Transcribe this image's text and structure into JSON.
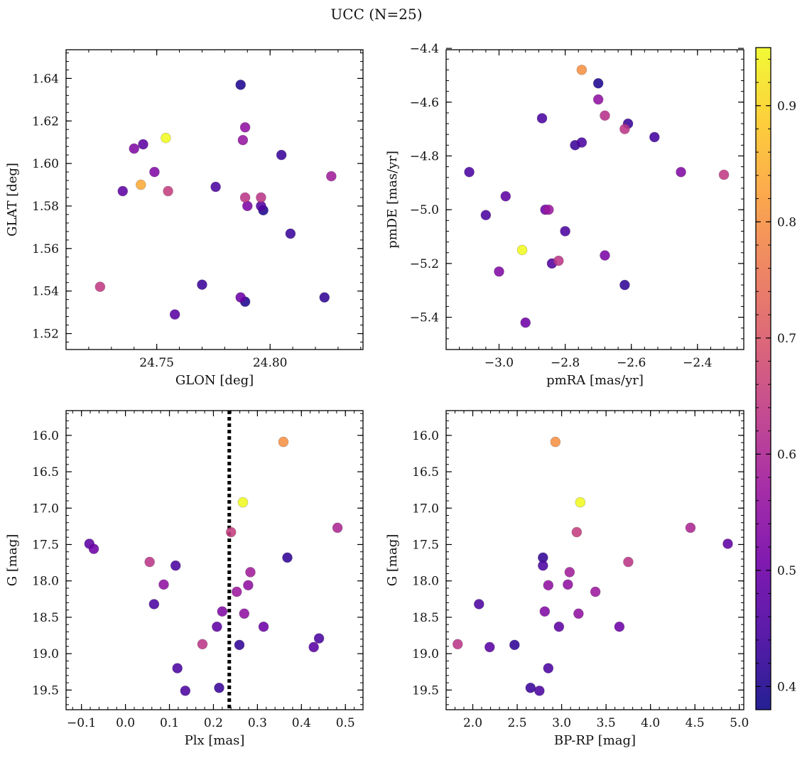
{
  "figure": {
    "title": "UCC (N=25)"
  },
  "colorbar": {
    "range": [
      0.38,
      0.95
    ],
    "ticks": [
      0.4,
      0.5,
      0.6,
      0.7,
      0.8,
      0.9
    ],
    "colormap": [
      "#0d0887",
      "#46039f",
      "#7201a8",
      "#9c179e",
      "#bd3786",
      "#d8576b",
      "#ed7953",
      "#fb9f3a",
      "#fdca26",
      "#f0f921"
    ]
  },
  "chart_data": [
    {
      "type": "scatter",
      "xlabel": "GLON [deg]",
      "ylabel": "GLAT [deg]",
      "xlim": [
        24.71,
        24.841
      ],
      "ylim": [
        1.5125,
        1.6535
      ],
      "xticks": [
        "24.75",
        "24.80"
      ],
      "yticks": [
        "1.52",
        "1.54",
        "1.56",
        "1.58",
        "1.60",
        "1.62",
        "1.64"
      ],
      "points": [
        {
          "x": 24.787,
          "y": 1.637,
          "c": 0.4
        },
        {
          "x": 24.754,
          "y": 1.612,
          "c": 0.95
        },
        {
          "x": 24.789,
          "y": 1.617,
          "c": 0.55
        },
        {
          "x": 24.788,
          "y": 1.611,
          "c": 0.56
        },
        {
          "x": 24.74,
          "y": 1.607,
          "c": 0.53
        },
        {
          "x": 24.744,
          "y": 1.609,
          "c": 0.48
        },
        {
          "x": 24.805,
          "y": 1.604,
          "c": 0.43
        },
        {
          "x": 24.749,
          "y": 1.596,
          "c": 0.53
        },
        {
          "x": 24.827,
          "y": 1.594,
          "c": 0.58
        },
        {
          "x": 24.743,
          "y": 1.59,
          "c": 0.84
        },
        {
          "x": 24.776,
          "y": 1.589,
          "c": 0.45
        },
        {
          "x": 24.735,
          "y": 1.587,
          "c": 0.48
        },
        {
          "x": 24.755,
          "y": 1.587,
          "c": 0.65
        },
        {
          "x": 24.789,
          "y": 1.584,
          "c": 0.63
        },
        {
          "x": 24.796,
          "y": 1.584,
          "c": 0.63
        },
        {
          "x": 24.796,
          "y": 1.58,
          "c": 0.46
        },
        {
          "x": 24.79,
          "y": 1.58,
          "c": 0.52
        },
        {
          "x": 24.797,
          "y": 1.578,
          "c": 0.4
        },
        {
          "x": 24.809,
          "y": 1.567,
          "c": 0.43
        },
        {
          "x": 24.77,
          "y": 1.543,
          "c": 0.43
        },
        {
          "x": 24.725,
          "y": 1.542,
          "c": 0.64
        },
        {
          "x": 24.787,
          "y": 1.537,
          "c": 0.5
        },
        {
          "x": 24.824,
          "y": 1.537,
          "c": 0.42
        },
        {
          "x": 24.789,
          "y": 1.535,
          "c": 0.4
        },
        {
          "x": 24.758,
          "y": 1.529,
          "c": 0.47
        }
      ]
    },
    {
      "type": "scatter",
      "xlabel": "pmRA [mas/yr]",
      "ylabel": "pmDE [mas/yr]",
      "xlim": [
        -3.16,
        -2.26
      ],
      "ylim": [
        -5.52,
        -4.405
      ],
      "xticks": [
        "−3.0",
        "−2.8",
        "−2.6",
        "−2.4"
      ],
      "yticks": [
        "−5.4",
        "−5.2",
        "−5.0",
        "−4.8",
        "−4.6",
        "−4.4"
      ],
      "points": [
        {
          "x": -2.75,
          "y": -4.48,
          "c": 0.8
        },
        {
          "x": -2.7,
          "y": -4.53,
          "c": 0.4
        },
        {
          "x": -2.7,
          "y": -4.59,
          "c": 0.55
        },
        {
          "x": -2.68,
          "y": -4.65,
          "c": 0.62
        },
        {
          "x": -2.87,
          "y": -4.66,
          "c": 0.45
        },
        {
          "x": -2.61,
          "y": -4.68,
          "c": 0.43
        },
        {
          "x": -2.62,
          "y": -4.7,
          "c": 0.63
        },
        {
          "x": -2.53,
          "y": -4.73,
          "c": 0.44
        },
        {
          "x": -2.75,
          "y": -4.75,
          "c": 0.45
        },
        {
          "x": -2.77,
          "y": -4.76,
          "c": 0.43
        },
        {
          "x": -3.09,
          "y": -4.86,
          "c": 0.45
        },
        {
          "x": -2.45,
          "y": -4.86,
          "c": 0.53
        },
        {
          "x": -2.32,
          "y": -4.87,
          "c": 0.64
        },
        {
          "x": -2.98,
          "y": -4.95,
          "c": 0.48
        },
        {
          "x": -2.85,
          "y": -5.0,
          "c": 0.57
        },
        {
          "x": -2.86,
          "y": -5.0,
          "c": 0.5
        },
        {
          "x": -3.04,
          "y": -5.02,
          "c": 0.45
        },
        {
          "x": -2.8,
          "y": -5.08,
          "c": 0.45
        },
        {
          "x": -2.93,
          "y": -5.15,
          "c": 0.95
        },
        {
          "x": -2.68,
          "y": -5.17,
          "c": 0.52
        },
        {
          "x": -2.82,
          "y": -5.19,
          "c": 0.63
        },
        {
          "x": -2.84,
          "y": -5.2,
          "c": 0.46
        },
        {
          "x": -3.0,
          "y": -5.23,
          "c": 0.53
        },
        {
          "x": -2.62,
          "y": -5.28,
          "c": 0.42
        },
        {
          "x": -2.92,
          "y": -5.42,
          "c": 0.5
        }
      ]
    },
    {
      "type": "scatter",
      "xlabel": "Plx [mas]",
      "ylabel": "G [mag]",
      "xlim": [
        -0.135,
        0.54
      ],
      "ylim": [
        19.77,
        15.66
      ],
      "xticks": [
        "−0.1",
        "0.0",
        "0.1",
        "0.2",
        "0.3",
        "0.4",
        "0.5"
      ],
      "yticks": [
        "16.0",
        "16.5",
        "17.0",
        "17.5",
        "18.0",
        "18.5",
        "19.0",
        "19.5"
      ],
      "vline": 0.236,
      "points": [
        {
          "x": 0.359,
          "y": 16.09,
          "c": 0.8
        },
        {
          "x": 0.267,
          "y": 16.92,
          "c": 0.95
        },
        {
          "x": 0.482,
          "y": 17.27,
          "c": 0.6
        },
        {
          "x": 0.24,
          "y": 17.33,
          "c": 0.65
        },
        {
          "x": -0.082,
          "y": 17.49,
          "c": 0.48
        },
        {
          "x": -0.072,
          "y": 17.56,
          "c": 0.5
        },
        {
          "x": 0.368,
          "y": 17.68,
          "c": 0.42
        },
        {
          "x": 0.055,
          "y": 17.74,
          "c": 0.63
        },
        {
          "x": 0.114,
          "y": 17.79,
          "c": 0.45
        },
        {
          "x": 0.284,
          "y": 17.88,
          "c": 0.58
        },
        {
          "x": 0.087,
          "y": 18.05,
          "c": 0.55
        },
        {
          "x": 0.279,
          "y": 18.06,
          "c": 0.55
        },
        {
          "x": 0.253,
          "y": 18.15,
          "c": 0.57
        },
        {
          "x": 0.065,
          "y": 18.32,
          "c": 0.45
        },
        {
          "x": 0.22,
          "y": 18.42,
          "c": 0.53
        },
        {
          "x": 0.27,
          "y": 18.45,
          "c": 0.55
        },
        {
          "x": 0.208,
          "y": 18.63,
          "c": 0.48
        },
        {
          "x": 0.314,
          "y": 18.63,
          "c": 0.5
        },
        {
          "x": 0.44,
          "y": 18.79,
          "c": 0.45
        },
        {
          "x": 0.175,
          "y": 18.87,
          "c": 0.63
        },
        {
          "x": 0.259,
          "y": 18.88,
          "c": 0.42
        },
        {
          "x": 0.428,
          "y": 18.91,
          "c": 0.47
        },
        {
          "x": 0.118,
          "y": 19.2,
          "c": 0.45
        },
        {
          "x": 0.213,
          "y": 19.47,
          "c": 0.43
        },
        {
          "x": 0.136,
          "y": 19.51,
          "c": 0.45
        }
      ]
    },
    {
      "type": "scatter",
      "xlabel": "BP-RP [mag]",
      "ylabel": "G [mag]",
      "xlim": [
        1.7,
        5.05
      ],
      "ylim": [
        19.77,
        15.66
      ],
      "xticks": [
        "2.0",
        "2.5",
        "3.0",
        "3.5",
        "4.0",
        "4.5",
        "5.0"
      ],
      "yticks": [
        "16.0",
        "16.5",
        "17.0",
        "17.5",
        "18.0",
        "18.5",
        "19.0",
        "19.5"
      ],
      "points": [
        {
          "x": 2.93,
          "y": 16.09,
          "c": 0.8
        },
        {
          "x": 3.21,
          "y": 16.92,
          "c": 0.95
        },
        {
          "x": 4.45,
          "y": 17.27,
          "c": 0.6
        },
        {
          "x": 3.17,
          "y": 17.33,
          "c": 0.65
        },
        {
          "x": 4.87,
          "y": 17.49,
          "c": 0.48
        },
        {
          "x": 2.79,
          "y": 17.68,
          "c": 0.42
        },
        {
          "x": 3.75,
          "y": 17.74,
          "c": 0.63
        },
        {
          "x": 2.79,
          "y": 17.79,
          "c": 0.45
        },
        {
          "x": 3.09,
          "y": 17.88,
          "c": 0.58
        },
        {
          "x": 2.85,
          "y": 18.06,
          "c": 0.55
        },
        {
          "x": 3.07,
          "y": 18.05,
          "c": 0.55
        },
        {
          "x": 3.38,
          "y": 18.15,
          "c": 0.57
        },
        {
          "x": 2.07,
          "y": 18.32,
          "c": 0.45
        },
        {
          "x": 2.81,
          "y": 18.42,
          "c": 0.53
        },
        {
          "x": 3.19,
          "y": 18.45,
          "c": 0.55
        },
        {
          "x": 2.97,
          "y": 18.63,
          "c": 0.48
        },
        {
          "x": 3.65,
          "y": 18.63,
          "c": 0.5
        },
        {
          "x": 1.83,
          "y": 18.87,
          "c": 0.63
        },
        {
          "x": 2.47,
          "y": 18.88,
          "c": 0.42
        },
        {
          "x": 2.19,
          "y": 18.91,
          "c": 0.47
        },
        {
          "x": 2.85,
          "y": 19.2,
          "c": 0.45
        },
        {
          "x": 2.65,
          "y": 19.47,
          "c": 0.43
        },
        {
          "x": 2.75,
          "y": 19.51,
          "c": 0.45
        }
      ]
    }
  ]
}
